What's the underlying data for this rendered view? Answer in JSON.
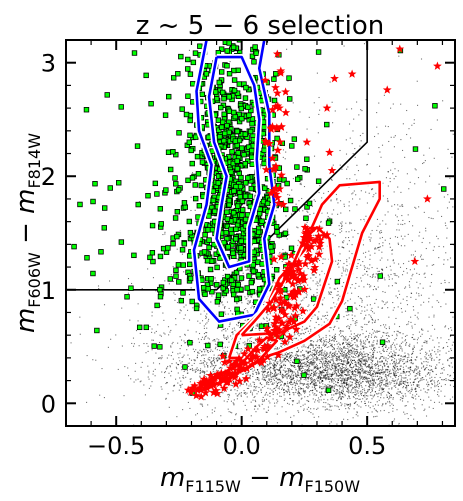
{
  "chart_data": {
    "type": "scatter",
    "title": "z ~ 5 − 6 selection",
    "xlabel": "m_F115W − m_F150W",
    "ylabel": "m_F606W − m_F814W",
    "xlim": [
      -0.7,
      0.85
    ],
    "ylim": [
      -0.2,
      3.2
    ],
    "x_ticks": [
      -0.5,
      0.0,
      0.5
    ],
    "x_tick_labels": [
      "−0.5",
      "0.0",
      "0.5"
    ],
    "y_ticks": [
      0,
      1,
      2,
      3
    ],
    "y_tick_labels": [
      "0",
      "1",
      "2",
      "3"
    ],
    "grid": false,
    "selection_boundary": {
      "color": "#000000",
      "x": [
        -0.7,
        -0.1,
        0.5,
        0.5
      ],
      "y": [
        1.0,
        1.0,
        2.3,
        3.2
      ]
    },
    "series": [
      {
        "marker": "dot",
        "color": "#000000",
        "clusters": [
          {
            "cx": 0.28,
            "cy": 0.35,
            "sx": 0.28,
            "sy": 0.16,
            "n": 2600
          },
          {
            "cx": 0.45,
            "cy": 0.2,
            "sx": 0.2,
            "sy": 0.12,
            "n": 1000
          },
          {
            "cx": 0.35,
            "cy": 0.9,
            "sx": 0.3,
            "sy": 0.55,
            "n": 1100
          },
          {
            "cx": 0.5,
            "cy": 1.6,
            "sx": 0.22,
            "sy": 0.7,
            "n": 500
          },
          {
            "cx": 0.05,
            "cy": 0.6,
            "sx": 0.25,
            "sy": 0.35,
            "n": 700
          }
        ]
      },
      {
        "marker": "square",
        "color": "#00ff00",
        "edge": "#000000",
        "clusters": [
          {
            "cx": -0.01,
            "cy": 1.8,
            "sx": 0.085,
            "sy": 0.5,
            "n": 620
          },
          {
            "cx": -0.05,
            "cy": 2.6,
            "sx": 0.1,
            "sy": 0.35,
            "n": 180
          },
          {
            "cx": -0.12,
            "cy": 1.4,
            "sx": 0.12,
            "sy": 0.35,
            "n": 120
          },
          {
            "cx": -0.1,
            "cy": 1.8,
            "sx": 0.28,
            "sy": 0.75,
            "n": 160
          }
        ]
      },
      {
        "marker": "star",
        "color": "#ff0000",
        "band": [
          [
            -0.18,
            0.1
          ],
          [
            -0.1,
            0.18
          ],
          [
            0.0,
            0.32
          ],
          [
            0.1,
            0.52
          ],
          [
            0.15,
            0.75
          ],
          [
            0.18,
            0.9
          ],
          [
            0.2,
            1.05
          ],
          [
            0.24,
            1.25
          ],
          [
            0.3,
            1.55
          ]
        ],
        "band_n": 220,
        "upper_column": {
          "x": 0.14,
          "y_from": 1.7,
          "y_to": 3.15,
          "n": 38
        },
        "outliers": [
          [
            0.63,
            3.12
          ],
          [
            0.78,
            2.97
          ],
          [
            0.44,
            2.9
          ],
          [
            0.37,
            2.86
          ],
          [
            0.58,
            2.76
          ],
          [
            0.35,
            2.21
          ],
          [
            0.74,
            1.8
          ],
          [
            0.69,
            1.25
          ],
          [
            0.36,
            2.05
          ],
          [
            0.34,
            2.6
          ],
          [
            0.26,
            2.3
          ]
        ]
      }
    ],
    "contours": [
      {
        "color": "#0000ff",
        "halo": "#ffffff",
        "paths": [
          [
            [
              -0.14,
              3.2
            ],
            [
              -0.18,
              2.75
            ],
            [
              -0.17,
              2.4
            ],
            [
              -0.12,
              2.1
            ],
            [
              -0.14,
              1.75
            ],
            [
              -0.19,
              1.35
            ],
            [
              -0.17,
              0.92
            ],
            [
              -0.09,
              0.72
            ],
            [
              0.05,
              0.78
            ],
            [
              0.11,
              1.05
            ],
            [
              0.09,
              1.45
            ],
            [
              0.13,
              1.75
            ],
            [
              0.11,
              2.1
            ],
            [
              0.11,
              2.55
            ],
            [
              0.07,
              2.95
            ],
            [
              0.09,
              3.2
            ]
          ],
          [
            [
              -0.1,
              3.05
            ],
            [
              -0.13,
              2.7
            ],
            [
              -0.11,
              2.3
            ],
            [
              -0.06,
              2.0
            ],
            [
              -0.08,
              1.75
            ],
            [
              -0.1,
              1.45
            ],
            [
              -0.05,
              1.2
            ],
            [
              0.03,
              1.25
            ],
            [
              0.03,
              1.55
            ],
            [
              0.07,
              1.85
            ],
            [
              0.06,
              2.15
            ],
            [
              0.07,
              2.5
            ],
            [
              0.05,
              2.8
            ],
            [
              0.0,
              3.05
            ],
            [
              -0.1,
              3.05
            ]
          ]
        ]
      },
      {
        "color": "#ff0000",
        "halo": "#ffffff",
        "paths": [
          [
            [
              -0.05,
              0.4
            ],
            [
              -0.02,
              0.6
            ],
            [
              0.1,
              0.85
            ],
            [
              0.15,
              1.1
            ],
            [
              0.25,
              1.35
            ],
            [
              0.28,
              1.55
            ],
            [
              0.32,
              1.75
            ],
            [
              0.39,
              1.92
            ],
            [
              0.55,
              1.95
            ],
            [
              0.55,
              1.8
            ],
            [
              0.48,
              1.5
            ],
            [
              0.44,
              1.2
            ],
            [
              0.4,
              0.9
            ],
            [
              0.35,
              0.7
            ],
            [
              0.25,
              0.55
            ],
            [
              0.15,
              0.45
            ],
            [
              0.08,
              0.4
            ],
            [
              -0.05,
              0.4
            ]
          ],
          [
            [
              0.0,
              0.6
            ],
            [
              0.05,
              0.72
            ],
            [
              0.12,
              0.9
            ],
            [
              0.2,
              1.2
            ],
            [
              0.25,
              1.45
            ],
            [
              0.3,
              1.55
            ],
            [
              0.35,
              1.45
            ],
            [
              0.36,
              1.25
            ],
            [
              0.33,
              1.05
            ],
            [
              0.3,
              0.85
            ],
            [
              0.25,
              0.72
            ],
            [
              0.15,
              0.62
            ],
            [
              0.0,
              0.6
            ]
          ],
          [
            [
              -0.18,
              0.12
            ],
            [
              -0.12,
              0.22
            ],
            [
              0.0,
              0.35
            ],
            [
              0.06,
              0.5
            ],
            [
              0.1,
              0.58
            ],
            [
              0.14,
              0.55
            ],
            [
              0.07,
              0.38
            ],
            [
              -0.05,
              0.22
            ],
            [
              -0.15,
              0.12
            ],
            [
              -0.18,
              0.12
            ]
          ]
        ]
      }
    ]
  }
}
